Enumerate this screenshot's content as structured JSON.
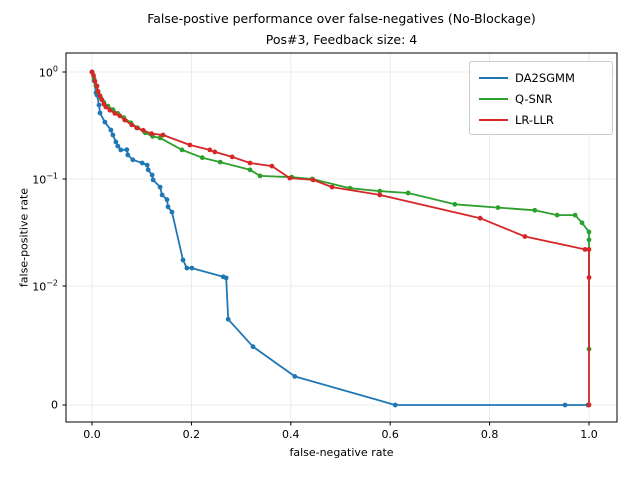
{
  "chart_data": {
    "type": "line",
    "title": "False-postive performance over false-negatives (No-Blockage)",
    "subtitle": "Pos#3, Feedback size: 4",
    "xlabel": "false-negative rate",
    "ylabel": "false-positive rate",
    "y_scale": "symlog",
    "y_linthresh": 0.01,
    "xlim": [
      -0.052,
      1.056
    ],
    "grid": true,
    "legend_position": "upper right",
    "axis_color": "#000000",
    "grid_color": "#e6e6e6",
    "x_ticks": [
      {
        "v": 0.0,
        "label": "0.0"
      },
      {
        "v": 0.2,
        "label": "0.2"
      },
      {
        "v": 0.4,
        "label": "0.4"
      },
      {
        "v": 0.6,
        "label": "0.6"
      },
      {
        "v": 0.8,
        "label": "0.8"
      },
      {
        "v": 1.0,
        "label": "1.0"
      }
    ],
    "y_ticks": [
      {
        "v": 1,
        "base": "10",
        "exp": "0"
      },
      {
        "v": 0.1,
        "base": "10",
        "exp": "−1"
      },
      {
        "v": 0.01,
        "base": "10",
        "exp": "−2"
      },
      {
        "v": 0,
        "base": "0",
        "exp": ""
      }
    ],
    "series": [
      {
        "name": "DA2SGMM",
        "color": "#1f77b4",
        "points": [
          [
            0.0,
            1.0
          ],
          [
            0.004,
            0.83
          ],
          [
            0.008,
            0.64
          ],
          [
            0.01,
            0.61
          ],
          [
            0.014,
            0.49
          ],
          [
            0.016,
            0.414
          ],
          [
            0.026,
            0.34
          ],
          [
            0.038,
            0.287
          ],
          [
            0.042,
            0.258
          ],
          [
            0.048,
            0.222
          ],
          [
            0.052,
            0.203
          ],
          [
            0.058,
            0.187
          ],
          [
            0.07,
            0.188
          ],
          [
            0.072,
            0.168
          ],
          [
            0.082,
            0.151
          ],
          [
            0.101,
            0.141
          ],
          [
            0.111,
            0.135
          ],
          [
            0.113,
            0.122
          ],
          [
            0.121,
            0.109
          ],
          [
            0.123,
            0.098
          ],
          [
            0.137,
            0.084
          ],
          [
            0.141,
            0.071
          ],
          [
            0.151,
            0.064
          ],
          [
            0.153,
            0.055
          ],
          [
            0.161,
            0.049
          ],
          [
            0.183,
            0.0175
          ],
          [
            0.191,
            0.0147
          ],
          [
            0.201,
            0.0147
          ],
          [
            0.264,
            0.0122
          ],
          [
            0.27,
            0.0119
          ],
          [
            0.274,
            0.0072
          ],
          [
            0.324,
            0.0049
          ],
          [
            0.408,
            0.0024
          ],
          [
            0.61,
            0.0
          ],
          [
            0.952,
            0.0
          ],
          [
            0.998,
            0.0
          ]
        ]
      },
      {
        "name": "Q-SNR",
        "color": "#2ca02c",
        "points": [
          [
            0.0,
            1.0
          ],
          [
            0.004,
            0.87
          ],
          [
            0.008,
            0.74
          ],
          [
            0.012,
            0.65
          ],
          [
            0.018,
            0.57
          ],
          [
            0.024,
            0.52
          ],
          [
            0.032,
            0.48
          ],
          [
            0.042,
            0.445
          ],
          [
            0.052,
            0.41
          ],
          [
            0.064,
            0.375
          ],
          [
            0.078,
            0.335
          ],
          [
            0.092,
            0.3
          ],
          [
            0.107,
            0.27
          ],
          [
            0.122,
            0.25
          ],
          [
            0.137,
            0.242
          ],
          [
            0.181,
            0.187
          ],
          [
            0.222,
            0.158
          ],
          [
            0.258,
            0.144
          ],
          [
            0.318,
            0.122
          ],
          [
            0.338,
            0.107
          ],
          [
            0.402,
            0.104
          ],
          [
            0.443,
            0.1
          ],
          [
            0.519,
            0.082
          ],
          [
            0.579,
            0.077
          ],
          [
            0.636,
            0.074
          ],
          [
            0.73,
            0.058
          ],
          [
            0.817,
            0.054
          ],
          [
            0.891,
            0.051
          ],
          [
            0.936,
            0.046
          ],
          [
            0.972,
            0.046
          ],
          [
            0.986,
            0.039
          ],
          [
            1.0,
            0.032
          ],
          [
            1.0,
            0.027
          ],
          [
            1.0,
            0.0047
          ]
        ]
      },
      {
        "name": "LR-LLR",
        "color": "#d62728",
        "points": [
          [
            0.0,
            1.0
          ],
          [
            0.003,
            0.93
          ],
          [
            0.006,
            0.82
          ],
          [
            0.01,
            0.74
          ],
          [
            0.012,
            0.66
          ],
          [
            0.016,
            0.6
          ],
          [
            0.02,
            0.55
          ],
          [
            0.024,
            0.5
          ],
          [
            0.028,
            0.47
          ],
          [
            0.036,
            0.44
          ],
          [
            0.046,
            0.41
          ],
          [
            0.056,
            0.39
          ],
          [
            0.066,
            0.355
          ],
          [
            0.08,
            0.32
          ],
          [
            0.09,
            0.3
          ],
          [
            0.103,
            0.285
          ],
          [
            0.12,
            0.265
          ],
          [
            0.143,
            0.258
          ],
          [
            0.197,
            0.208
          ],
          [
            0.237,
            0.187
          ],
          [
            0.247,
            0.179
          ],
          [
            0.282,
            0.161
          ],
          [
            0.318,
            0.141
          ],
          [
            0.362,
            0.132
          ],
          [
            0.398,
            0.102
          ],
          [
            0.445,
            0.098
          ],
          [
            0.483,
            0.084
          ],
          [
            0.579,
            0.071
          ],
          [
            0.781,
            0.043
          ],
          [
            0.871,
            0.029
          ],
          [
            0.992,
            0.022
          ],
          [
            1.0,
            0.022
          ],
          [
            1.0,
            0.012
          ],
          [
            1.0,
            0.0
          ]
        ]
      }
    ]
  }
}
